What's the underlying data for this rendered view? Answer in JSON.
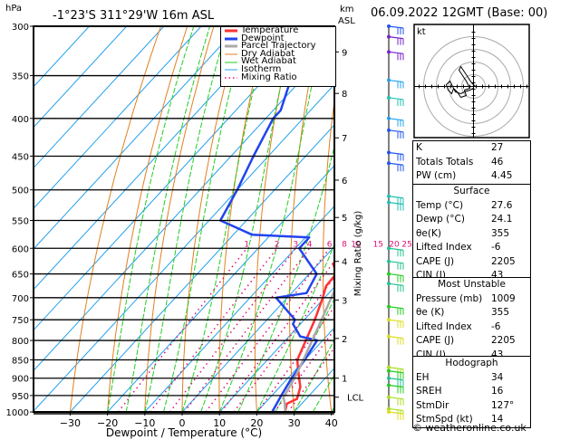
{
  "header": {
    "hpa_label": "hPa",
    "location": "-1°23'S  311°29'W  16m  ASL",
    "km_label": "km",
    "asl_label": "ASL",
    "datetime": "06.09.2022  12GMT  (Base: 00)"
  },
  "legend": {
    "items": [
      {
        "label": "Temperature",
        "color": "#ff3333",
        "style": "solid-thick"
      },
      {
        "label": "Dewpoint",
        "color": "#2244ee",
        "style": "solid-thick"
      },
      {
        "label": "Parcel Trajectory",
        "color": "#aaaaaa",
        "style": "solid-thick"
      },
      {
        "label": "Dry Adiabat",
        "color": "#e08020",
        "style": "solid"
      },
      {
        "label": "Wet Adiabat",
        "color": "#22cc22",
        "style": "dash"
      },
      {
        "label": "Isotherm",
        "color": "#22a0ee",
        "style": "solid"
      },
      {
        "label": "Mixing Ratio",
        "color": "#dd1177",
        "style": "dot"
      }
    ]
  },
  "hodograph": {
    "unit_label": "kt",
    "ring_labels": [
      "10",
      "20",
      "30",
      "40"
    ]
  },
  "indices": {
    "rows": [
      {
        "label": "K",
        "value": "27"
      },
      {
        "label": "Totals Totals",
        "value": "46"
      },
      {
        "label": "PW (cm)",
        "value": "4.45"
      }
    ]
  },
  "surface": {
    "title": "Surface",
    "rows": [
      {
        "label": "Temp (°C)",
        "value": "27.6"
      },
      {
        "label": "Dewp (°C)",
        "value": "24.1"
      },
      {
        "label": "θe(K)",
        "value": "355"
      },
      {
        "label": "Lifted Index",
        "value": "-6"
      },
      {
        "label": "CAPE (J)",
        "value": "2205"
      },
      {
        "label": "CIN (J)",
        "value": "43"
      }
    ]
  },
  "most_unstable": {
    "title": "Most Unstable",
    "rows": [
      {
        "label": "Pressure (mb)",
        "value": "1009"
      },
      {
        "label": "θe (K)",
        "value": "355"
      },
      {
        "label": "Lifted Index",
        "value": "-6"
      },
      {
        "label": "CAPE (J)",
        "value": "2205"
      },
      {
        "label": "CIN (J)",
        "value": "43"
      }
    ]
  },
  "hodograph_table": {
    "title": "Hodograph",
    "rows": [
      {
        "label": "EH",
        "value": "34"
      },
      {
        "label": "SREH",
        "value": "16"
      },
      {
        "label": "StmDir",
        "value": "127°"
      },
      {
        "label": "StmSpd (kt)",
        "value": "14"
      }
    ]
  },
  "copyright": "© weatheronline.co.uk",
  "chart_data": {
    "type": "line",
    "title": "-1°23'S 311°29'W 16m ASL — 06.09.2022 12GMT (Base: 00)",
    "xlabel": "Dewpoint / Temperature (°C)",
    "ylabel": "hPa",
    "y2label": "Mixing Ratio (g/kg)",
    "xlim": [
      -40,
      40
    ],
    "ylim": [
      1000,
      300
    ],
    "x_ticks": [
      -30,
      -20,
      -10,
      0,
      10,
      20,
      30,
      40
    ],
    "pressure_ticks": [
      300,
      350,
      400,
      450,
      500,
      550,
      600,
      650,
      700,
      750,
      800,
      850,
      900,
      950,
      1000
    ],
    "km_ticks": [
      {
        "label": "1",
        "p": 900
      },
      {
        "label": "2",
        "p": 795
      },
      {
        "label": "3",
        "p": 705
      },
      {
        "label": "4",
        "p": 625
      },
      {
        "label": "5",
        "p": 545
      },
      {
        "label": "6",
        "p": 485
      },
      {
        "label": "7",
        "p": 425
      },
      {
        "label": "8",
        "p": 370
      },
      {
        "label": "9",
        "p": 325
      },
      {
        "label": "LCL",
        "p": 955
      }
    ],
    "mixing_ratio_labels": [
      "1",
      "2",
      "3",
      "4",
      "6",
      "8",
      "10",
      "15",
      "20",
      "25"
    ],
    "mixing_ratio_values": [
      1,
      2,
      3,
      4,
      6,
      8,
      10,
      15,
      20,
      25
    ],
    "grid": true,
    "legend_position": "top-right",
    "series": [
      {
        "name": "Temperature",
        "color": "#ff3333",
        "points": [
          [
            1000,
            27.6
          ],
          [
            975,
            26.0
          ],
          [
            960,
            27.5
          ],
          [
            950,
            27.0
          ],
          [
            925,
            25.5
          ],
          [
            900,
            23.0
          ],
          [
            875,
            20.5
          ],
          [
            850,
            18.0
          ],
          [
            800,
            15.5
          ],
          [
            750,
            12.8
          ],
          [
            700,
            9.5
          ],
          [
            675,
            7.5
          ],
          [
            650,
            7.2
          ],
          [
            630,
            4.0
          ],
          [
            600,
            2.5
          ],
          [
            550,
            -0.5
          ],
          [
            500,
            -5.5
          ],
          [
            450,
            -10.5
          ],
          [
            400,
            -16.0
          ],
          [
            350,
            -24.0
          ],
          [
            325,
            -29.0
          ],
          [
            300,
            -33.5
          ]
        ]
      },
      {
        "name": "Dewpoint",
        "color": "#2244ee",
        "points": [
          [
            1000,
            24.1
          ],
          [
            950,
            22.5
          ],
          [
            900,
            21.0
          ],
          [
            850,
            20.0
          ],
          [
            800,
            18.5
          ],
          [
            790,
            13.0
          ],
          [
            760,
            8.0
          ],
          [
            750,
            7.5
          ],
          [
            700,
            -3.0
          ],
          [
            690,
            4.0
          ],
          [
            650,
            2.0
          ],
          [
            600,
            -9.0
          ],
          [
            580,
            -9.0
          ],
          [
            575,
            -25.0
          ],
          [
            550,
            -37.0
          ],
          [
            500,
            -40.0
          ],
          [
            450,
            -44.0
          ],
          [
            400,
            -48.0
          ],
          [
            390,
            -48.0
          ],
          [
            340,
            -55.0
          ],
          [
            320,
            -64.0
          ],
          [
            300,
            -60.0
          ]
        ]
      },
      {
        "name": "Parcel Trajectory",
        "color": "#aaaaaa",
        "points": [
          [
            1000,
            27.6
          ],
          [
            975,
            25.5
          ],
          [
            955,
            23.5
          ],
          [
            900,
            21.8
          ],
          [
            850,
            19.6
          ],
          [
            800,
            17.2
          ],
          [
            750,
            14.6
          ],
          [
            700,
            11.8
          ],
          [
            650,
            8.8
          ],
          [
            600,
            5.5
          ],
          [
            550,
            1.8
          ],
          [
            500,
            -2.4
          ],
          [
            450,
            -7.2
          ],
          [
            400,
            -12.8
          ],
          [
            360,
            -18.5
          ]
        ]
      }
    ],
    "wind_barbs_note": "wind barbs plotted along right of skew-T, 1000 to 300 hPa",
    "hodograph_trace_note": "hodograph trace within 40 kt rings"
  }
}
